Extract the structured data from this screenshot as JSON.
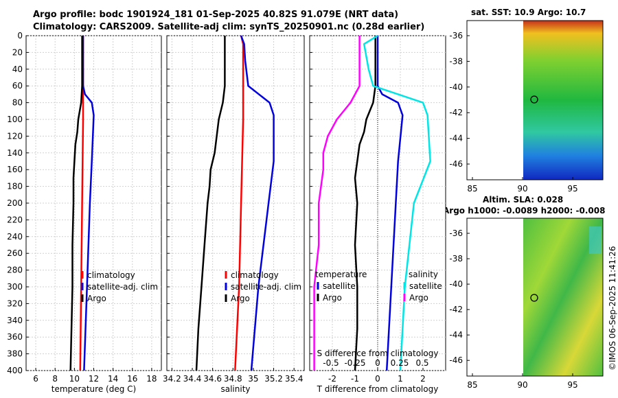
{
  "header": {
    "title_line1": "Argo profile: bodc 1901924_181 01-Sep-2025 40.82S 91.079E (NRT data)",
    "title_line2": "Climatology: CARS2009. Satellite-adj clim: synTS_20250901.nc (0.28d earlier)"
  },
  "maps": {
    "sst_title": "sat. SST: 10.9 Argo: 10.7",
    "sla_title_1": "Altim. SLA: 0.028",
    "sla_title_2": "Argo h1000: -0.0089 h2000: -0.008",
    "lat_ticks": [
      "-36",
      "-38",
      "-40",
      "-42",
      "-44",
      "-46"
    ],
    "lon_ticks": [
      "85",
      "90",
      "95"
    ],
    "argo_position": {
      "lat": -40.82,
      "lon": 91.079
    },
    "colors": {
      "sst_low": "#1028c0",
      "sst_mid": "#20c040",
      "sst_high": "#c83018",
      "sla": "#60c848"
    }
  },
  "timestamp": "©IMOS 06-Sep-2025 11:41:26",
  "chart_data": [
    {
      "type": "line",
      "name": "temperature",
      "xlabel": "temperature (deg C)",
      "xlim": [
        5,
        19
      ],
      "xticks": [
        "6",
        "8",
        "10",
        "12",
        "14",
        "16",
        "18"
      ],
      "ylim": [
        0,
        400
      ],
      "yticks": [
        "0",
        "20",
        "40",
        "60",
        "80",
        "100",
        "120",
        "140",
        "160",
        "180",
        "200",
        "220",
        "240",
        "260",
        "280",
        "300",
        "320",
        "340",
        "360",
        "380",
        "400"
      ],
      "grid": true,
      "legend": [
        "climatology",
        "satellite-adj. clim",
        "Argo"
      ],
      "series": [
        {
          "name": "climatology",
          "color": "#ff0000",
          "depth": [
            0,
            50,
            100,
            200,
            300,
            400
          ],
          "values": [
            10.9,
            10.9,
            10.9,
            10.8,
            10.7,
            10.6
          ]
        },
        {
          "name": "satellite-adj. clim",
          "color": "#0000dd",
          "depth": [
            0,
            60,
            70,
            80,
            95,
            150,
            200,
            300,
            400
          ],
          "values": [
            10.9,
            10.9,
            11.1,
            11.8,
            12.0,
            11.8,
            11.6,
            11.3,
            11.0
          ]
        },
        {
          "name": "Argo",
          "color": "#000000",
          "depth": [
            0,
            60,
            80,
            100,
            115,
            130,
            150,
            170,
            200,
            250,
            300,
            350,
            400
          ],
          "values": [
            10.8,
            10.8,
            10.7,
            10.4,
            10.3,
            10.1,
            10.0,
            9.9,
            9.9,
            9.8,
            9.8,
            9.7,
            9.6
          ]
        }
      ]
    },
    {
      "type": "line",
      "name": "salinity",
      "xlabel": "salinity",
      "xlim": [
        34.15,
        35.5
      ],
      "xticks": [
        "34.2",
        "34.4",
        "34.6",
        "34.8",
        "35",
        "35.2",
        "35.4"
      ],
      "ylim": [
        0,
        400
      ],
      "grid": true,
      "legend": [
        "climatology",
        "satellite-adj. clim",
        "Argo"
      ],
      "series": [
        {
          "name": "climatology",
          "color": "#ff0000",
          "depth": [
            0,
            10,
            30,
            60,
            100,
            200,
            300,
            400
          ],
          "values": [
            34.88,
            34.9,
            34.9,
            34.9,
            34.9,
            34.88,
            34.86,
            34.82
          ],
          "markers": [
            0
          ]
        },
        {
          "name": "satellite-adj. clim",
          "color": "#0000dd",
          "depth": [
            0,
            10,
            30,
            60,
            80,
            95,
            150,
            200,
            300,
            400
          ],
          "values": [
            34.88,
            34.91,
            34.92,
            34.95,
            35.16,
            35.2,
            35.2,
            35.15,
            35.05,
            34.98
          ]
        },
        {
          "name": "Argo",
          "color": "#000000",
          "depth": [
            0,
            60,
            80,
            100,
            120,
            140,
            160,
            180,
            200,
            250,
            300,
            350,
            400
          ],
          "values": [
            34.72,
            34.72,
            34.7,
            34.66,
            34.64,
            34.62,
            34.58,
            34.57,
            34.55,
            34.52,
            34.49,
            34.46,
            34.44
          ]
        }
      ]
    },
    {
      "type": "line",
      "name": "differences",
      "xlabel": "T difference from climatology",
      "xlim": [
        -3,
        3
      ],
      "xticks": [
        "-2",
        "-1",
        "0",
        "1",
        "2"
      ],
      "sublabel": "S difference from climatology",
      "subticks": [
        "-0.5",
        "-0.25",
        "0",
        "0.25",
        "0.5"
      ],
      "ylim": [
        0,
        400
      ],
      "grid": true,
      "legend": {
        "col1_title": "temperature",
        "col1": [
          "satellite",
          "Argo"
        ],
        "col2_title": "salinity",
        "col2": [
          "satellite",
          "Argo"
        ]
      },
      "series": [
        {
          "name": "temperature satellite",
          "color": "#0000dd",
          "depth": [
            0,
            60,
            70,
            80,
            95,
            150,
            200,
            300,
            400
          ],
          "values": [
            0.0,
            0.0,
            0.2,
            0.9,
            1.1,
            0.9,
            0.8,
            0.6,
            0.4
          ]
        },
        {
          "name": "temperature Argo",
          "color": "#000000",
          "depth": [
            0,
            60,
            80,
            100,
            115,
            130,
            150,
            170,
            200,
            250,
            300,
            350,
            400
          ],
          "values": [
            -0.1,
            -0.1,
            -0.2,
            -0.5,
            -0.6,
            -0.8,
            -0.9,
            -1.0,
            -0.9,
            -1.0,
            -0.9,
            -0.9,
            -1.0
          ]
        },
        {
          "name": "salinity satellite",
          "color": "#00e5e5",
          "depth": [
            0,
            10,
            40,
            60,
            80,
            95,
            150,
            200,
            300,
            400
          ],
          "values": [
            0.0,
            -0.15,
            -0.1,
            -0.05,
            0.5,
            0.55,
            0.58,
            0.4,
            0.3,
            0.25
          ]
        },
        {
          "name": "salinity Argo",
          "color": "#ff00ff",
          "depth": [
            0,
            60,
            80,
            100,
            120,
            140,
            160,
            200,
            250,
            300,
            350,
            400
          ],
          "values": [
            -0.2,
            -0.2,
            -0.3,
            -0.45,
            -0.55,
            -0.6,
            -0.6,
            -0.65,
            -0.65,
            -0.7,
            -0.7,
            -0.7
          ]
        }
      ]
    }
  ]
}
